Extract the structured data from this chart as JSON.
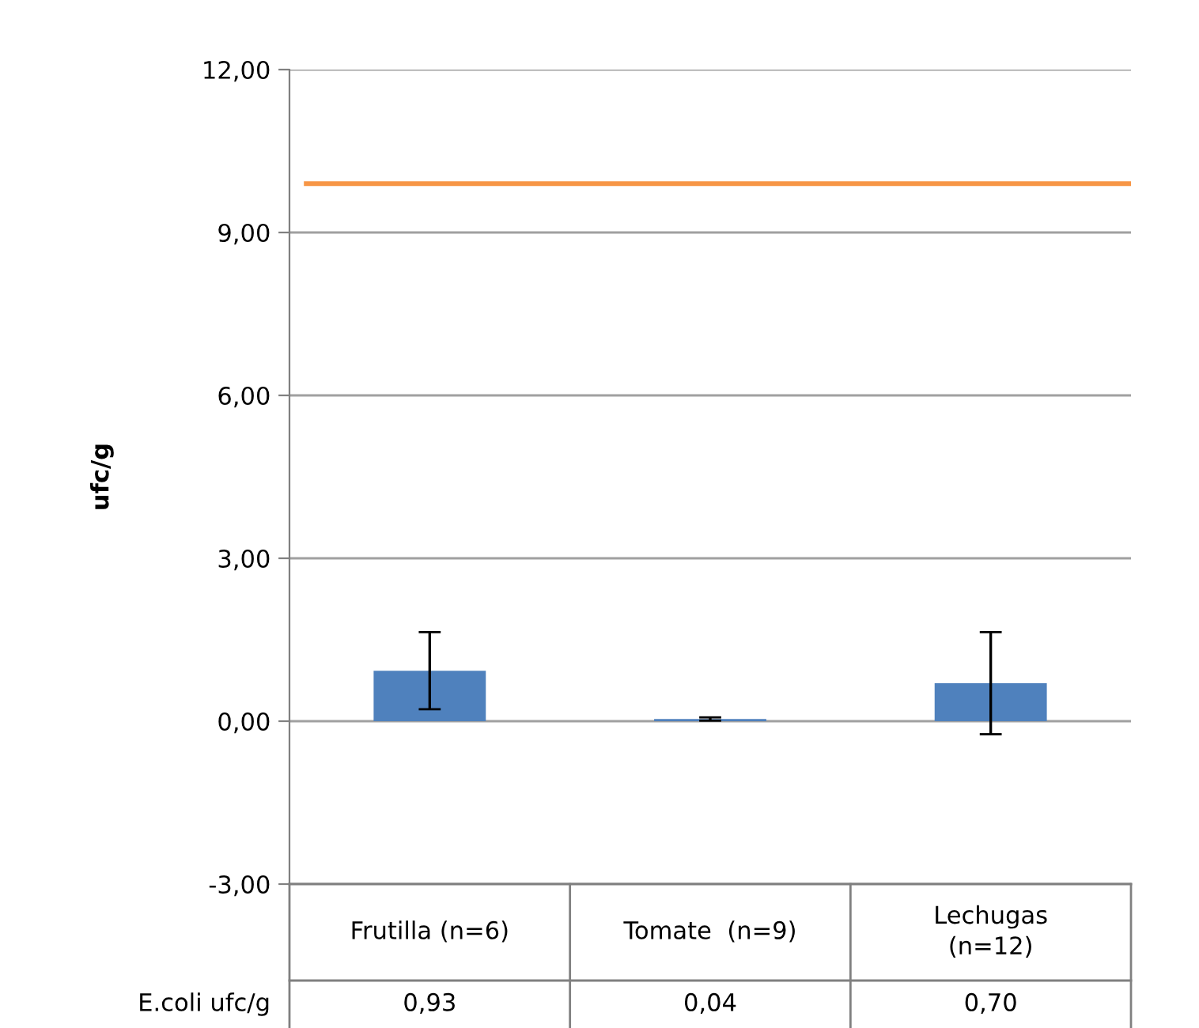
{
  "chart_data": {
    "type": "bar",
    "ylabel": "ufc/g",
    "categories": [
      "Frutilla (n=6)",
      "Tomate  (n=9)",
      "Lechugas\n(n=12)"
    ],
    "series": [
      {
        "name": "E.coli ufc/g",
        "color": "#4f81bd",
        "values": [
          0.93,
          0.04,
          0.7
        ],
        "errors": [
          0.71,
          0.03,
          0.94
        ],
        "value_labels": [
          "0,93",
          "0,04",
          "0,70"
        ]
      }
    ],
    "ylim": [
      -3,
      12
    ],
    "yticks": [
      {
        "value": -3,
        "label": "-3,00"
      },
      {
        "value": 0,
        "label": "0,00"
      },
      {
        "value": 3,
        "label": "3,00"
      },
      {
        "value": 6,
        "label": "6,00"
      },
      {
        "value": 9,
        "label": "9,00"
      },
      {
        "value": 12,
        "label": "12,00"
      }
    ],
    "grid": "y",
    "legend": false,
    "ref_lines": [
      {
        "axis": "y",
        "value": 9.9,
        "color": "#f79646"
      }
    ]
  }
}
